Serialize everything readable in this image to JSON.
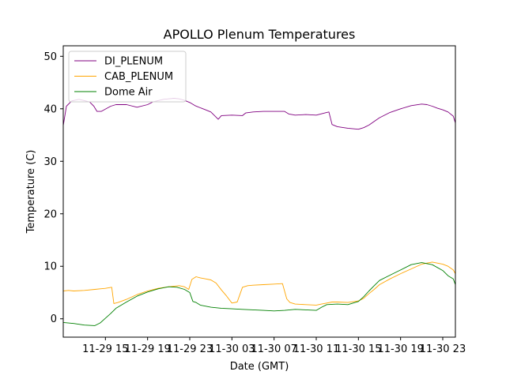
{
  "chart_data": {
    "type": "line",
    "title": "APOLLO Plenum Temperatures",
    "xlabel": "Date (GMT)",
    "ylabel": "Temperature (C)",
    "x_unit": "hours since 11-29 11:00 GMT",
    "xlim": [
      0,
      37.2
    ],
    "ylim": [
      -3.5,
      52
    ],
    "x_ticks": [
      {
        "x": 4,
        "label": "11-29 15"
      },
      {
        "x": 8,
        "label": "11-29 19"
      },
      {
        "x": 12,
        "label": "11-29 23"
      },
      {
        "x": 16,
        "label": "11-30 03"
      },
      {
        "x": 20,
        "label": "11-30 07"
      },
      {
        "x": 24,
        "label": "11-30 11"
      },
      {
        "x": 28,
        "label": "11-30 15"
      },
      {
        "x": 32,
        "label": "11-30 19"
      },
      {
        "x": 36,
        "label": "11-30 23"
      }
    ],
    "y_ticks": [
      0,
      10,
      20,
      30,
      40,
      50
    ],
    "legend_position": "top-left",
    "series": [
      {
        "name": "DI_PLENUM",
        "color": "#800080",
        "x": [
          0,
          0.3,
          0.8,
          1.5,
          2.5,
          2.9,
          3.2,
          3.6,
          4.5,
          5,
          6,
          7,
          8,
          8.5,
          9.5,
          10,
          10.5,
          11,
          11.5,
          12,
          12.5,
          13,
          13.5,
          14,
          14.4,
          14.7,
          15,
          16,
          17,
          17.3,
          18,
          19,
          20,
          21,
          21.4,
          21.7,
          22,
          23,
          24,
          25,
          25.2,
          25.5,
          26,
          27,
          28,
          28.5,
          29,
          29.5,
          30,
          31,
          32,
          33,
          34,
          34.5,
          35,
          35.5,
          36,
          36.5,
          37,
          37.2
        ],
        "values": [
          36.8,
          40.5,
          41.5,
          41.8,
          41.3,
          40.5,
          39.5,
          39.5,
          40.5,
          40.8,
          40.8,
          40.3,
          40.8,
          41.3,
          41.8,
          41.9,
          42.0,
          41.9,
          41.6,
          41.2,
          40.6,
          40.2,
          39.8,
          39.4,
          38.6,
          38.0,
          38.7,
          38.8,
          38.7,
          39.2,
          39.4,
          39.5,
          39.5,
          39.5,
          39.0,
          38.9,
          38.8,
          38.9,
          38.8,
          39.3,
          39.4,
          37.0,
          36.6,
          36.3,
          36.1,
          36.4,
          36.9,
          37.6,
          38.3,
          39.3,
          40.0,
          40.6,
          40.9,
          40.8,
          40.5,
          40.1,
          39.8,
          39.4,
          38.6,
          37.3
        ]
      },
      {
        "name": "CAB_PLENUM",
        "color": "#ffa500",
        "x": [
          0,
          0.5,
          1,
          2,
          3,
          4,
          4.6,
          4.8,
          5.2,
          6,
          7,
          8,
          9,
          10,
          11,
          11.5,
          11.9,
          12.2,
          12.6,
          13,
          13.5,
          14,
          14.5,
          15,
          15.5,
          16,
          16.5,
          17,
          17.5,
          18,
          19,
          20,
          20.8,
          21.2,
          21.5,
          22,
          23,
          24,
          24.5,
          25,
          25.5,
          26,
          27,
          28,
          28.5,
          29,
          29.5,
          30,
          31,
          32,
          33,
          34,
          35,
          36,
          36.5,
          37,
          37.2
        ],
        "values": [
          5.3,
          5.4,
          5.3,
          5.4,
          5.6,
          5.8,
          6.0,
          2.9,
          3.1,
          3.7,
          4.6,
          5.3,
          5.8,
          6.1,
          6.3,
          6.1,
          5.6,
          7.5,
          8.0,
          7.8,
          7.6,
          7.4,
          6.8,
          5.5,
          4.3,
          3.0,
          3.2,
          6.0,
          6.3,
          6.4,
          6.5,
          6.6,
          6.7,
          3.8,
          3.1,
          2.8,
          2.7,
          2.6,
          2.8,
          3.0,
          3.2,
          3.2,
          3.1,
          3.4,
          3.9,
          4.8,
          5.6,
          6.5,
          7.6,
          8.6,
          9.5,
          10.4,
          10.8,
          10.4,
          10.0,
          9.3,
          8.6
        ]
      },
      {
        "name": "Dome Air",
        "color": "#008000",
        "x": [
          0,
          1,
          2,
          3,
          3.5,
          4,
          4.5,
          5,
          6,
          7,
          8,
          9,
          10,
          10.8,
          11.5,
          12,
          12.3,
          12.6,
          13,
          14,
          15,
          16,
          17,
          18,
          19,
          20,
          21,
          22,
          23,
          24,
          24.5,
          25,
          26,
          27,
          28,
          28.5,
          29,
          29.5,
          30,
          31,
          32,
          33,
          34,
          35,
          36,
          36.5,
          37,
          37.2
        ],
        "values": [
          -0.7,
          -0.9,
          -1.2,
          -1.3,
          -0.8,
          0.1,
          1.0,
          2.0,
          3.2,
          4.3,
          5.1,
          5.7,
          6.1,
          6.0,
          5.6,
          5.0,
          3.3,
          3.1,
          2.6,
          2.2,
          2.0,
          1.9,
          1.8,
          1.7,
          1.6,
          1.5,
          1.6,
          1.8,
          1.7,
          1.6,
          2.2,
          2.7,
          2.8,
          2.7,
          3.3,
          4.2,
          5.3,
          6.3,
          7.3,
          8.3,
          9.3,
          10.3,
          10.7,
          10.3,
          9.2,
          8.2,
          7.6,
          6.5
        ]
      }
    ]
  }
}
